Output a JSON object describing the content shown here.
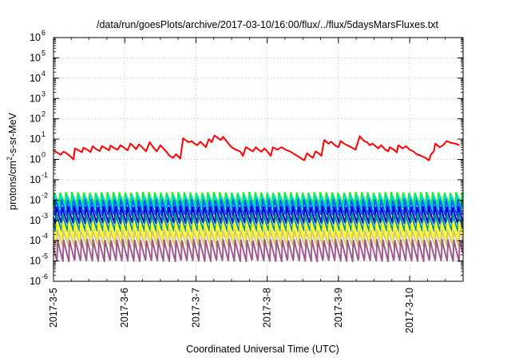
{
  "chart_data": {
    "type": "line",
    "title": "/data/run/goesPlots/archive/2017-03-10/16:00/flux/../flux/5daysMarsFluxes.txt",
    "xlabel": "Coordinated Universal Time (UTC)",
    "ylabel": {
      "base": "protons/cm",
      "sup": "2",
      "rest": "-s-sr-MeV"
    },
    "yscale": "log",
    "ylim_exp": [
      -6,
      6
    ],
    "y_tick_exponents": [
      -6,
      -5,
      -4,
      -3,
      -2,
      -1,
      0,
      1,
      2,
      3,
      4,
      5,
      6
    ],
    "xlim_days": [
      0,
      5.75
    ],
    "x_ticks": [
      {
        "day": 0,
        "label": "2017-3-5"
      },
      {
        "day": 1,
        "label": "2017-3-6"
      },
      {
        "day": 2,
        "label": "2017-3-7"
      },
      {
        "day": 3,
        "label": "2017-3-8"
      },
      {
        "day": 4,
        "label": "2017-3-9"
      },
      {
        "day": 5,
        "label": "2017-3-10"
      }
    ],
    "grid": true,
    "series": [
      {
        "color": "#ff0000",
        "points": [
          [
            0.0,
            2.8
          ],
          [
            0.05,
            2.2
          ],
          [
            0.1,
            1.7
          ],
          [
            0.14,
            2.4
          ],
          [
            0.18,
            2.0
          ],
          [
            0.22,
            1.6
          ],
          [
            0.28,
            1.0
          ],
          [
            0.3,
            3.5
          ],
          [
            0.35,
            2.8
          ],
          [
            0.4,
            2.3
          ],
          [
            0.42,
            3.8
          ],
          [
            0.48,
            2.9
          ],
          [
            0.52,
            2.3
          ],
          [
            0.55,
            4.5
          ],
          [
            0.6,
            3.2
          ],
          [
            0.65,
            2.6
          ],
          [
            0.68,
            4.5
          ],
          [
            0.74,
            3.4
          ],
          [
            0.78,
            2.8
          ],
          [
            0.8,
            4.8
          ],
          [
            0.86,
            3.5
          ],
          [
            0.9,
            3.0
          ],
          [
            0.94,
            5.0
          ],
          [
            0.99,
            3.8
          ],
          [
            1.04,
            2.8
          ],
          [
            1.08,
            6.0
          ],
          [
            1.12,
            4.5
          ],
          [
            1.16,
            3.2
          ],
          [
            1.2,
            5.5
          ],
          [
            1.25,
            3.8
          ],
          [
            1.3,
            2.5
          ],
          [
            1.35,
            7.0
          ],
          [
            1.4,
            4.0
          ],
          [
            1.45,
            2.5
          ],
          [
            1.5,
            5.0
          ],
          [
            1.58,
            2.5
          ],
          [
            1.63,
            1.5
          ],
          [
            1.68,
            1.2
          ],
          [
            1.72,
            1.8
          ],
          [
            1.78,
            1.1
          ],
          [
            1.82,
            11.0
          ],
          [
            1.86,
            8.5
          ],
          [
            1.9,
            7.0
          ],
          [
            1.94,
            8.0
          ],
          [
            1.98,
            6.0
          ],
          [
            2.02,
            5.0
          ],
          [
            2.06,
            7.5
          ],
          [
            2.1,
            5.5
          ],
          [
            2.14,
            4.0
          ],
          [
            2.18,
            10.0
          ],
          [
            2.22,
            7.0
          ],
          [
            2.26,
            15.0
          ],
          [
            2.3,
            12.0
          ],
          [
            2.35,
            9.0
          ],
          [
            2.38,
            13.0
          ],
          [
            2.44,
            7.0
          ],
          [
            2.5,
            4.0
          ],
          [
            2.56,
            3.0
          ],
          [
            2.62,
            2.5
          ],
          [
            2.66,
            1.5
          ],
          [
            2.7,
            4.0
          ],
          [
            2.76,
            3.0
          ],
          [
            2.8,
            2.5
          ],
          [
            2.84,
            4.0
          ],
          [
            2.88,
            3.0
          ],
          [
            2.92,
            2.4
          ],
          [
            2.96,
            3.5
          ],
          [
            3.0,
            2.5
          ],
          [
            3.05,
            1.5
          ],
          [
            3.08,
            4.0
          ],
          [
            3.14,
            3.0
          ],
          [
            3.2,
            4.0
          ],
          [
            3.26,
            3.0
          ],
          [
            3.32,
            2.5
          ],
          [
            3.36,
            2.0
          ],
          [
            3.42,
            1.5
          ],
          [
            3.48,
            1.1
          ],
          [
            3.52,
            0.9
          ],
          [
            3.56,
            2.0
          ],
          [
            3.6,
            1.5
          ],
          [
            3.64,
            1.2
          ],
          [
            3.68,
            2.5
          ],
          [
            3.72,
            2.0
          ],
          [
            3.76,
            1.5
          ],
          [
            3.8,
            9.0
          ],
          [
            3.86,
            6.0
          ],
          [
            3.9,
            7.5
          ],
          [
            3.95,
            5.0
          ],
          [
            4.0,
            4.0
          ],
          [
            4.03,
            8.0
          ],
          [
            4.08,
            6.0
          ],
          [
            4.12,
            5.0
          ],
          [
            4.18,
            4.0
          ],
          [
            4.24,
            3.0
          ],
          [
            4.3,
            14.0
          ],
          [
            4.36,
            8.0
          ],
          [
            4.4,
            7.0
          ],
          [
            4.44,
            5.0
          ],
          [
            4.48,
            6.0
          ],
          [
            4.52,
            4.5
          ],
          [
            4.56,
            3.5
          ],
          [
            4.6,
            5.0
          ],
          [
            4.66,
            3.0
          ],
          [
            4.7,
            2.5
          ],
          [
            4.72,
            4.0
          ],
          [
            4.78,
            3.0
          ],
          [
            4.82,
            2.2
          ],
          [
            4.84,
            5.0
          ],
          [
            4.9,
            3.5
          ],
          [
            4.95,
            4.5
          ],
          [
            5.0,
            3.0
          ],
          [
            5.05,
            2.5
          ],
          [
            5.1,
            1.8
          ],
          [
            5.16,
            1.5
          ],
          [
            5.22,
            1.2
          ],
          [
            5.27,
            0.9
          ],
          [
            5.3,
            1.8
          ],
          [
            5.34,
            2.5
          ],
          [
            5.36,
            6.0
          ],
          [
            5.42,
            4.0
          ],
          [
            5.47,
            5.0
          ],
          [
            5.52,
            8.0
          ],
          [
            5.58,
            6.5
          ],
          [
            5.64,
            6.0
          ],
          [
            5.7,
            5.0
          ]
        ]
      },
      {
        "color": "#00ff00",
        "peak": 0.024,
        "trough": 0.006,
        "period": 0.083,
        "phase": 0.0
      },
      {
        "color": "#00d8d8",
        "peak": 0.018,
        "trough": 0.004,
        "period": 0.083,
        "phase": 0.01
      },
      {
        "color": "#0060ff",
        "peak": 0.011,
        "trough": 0.0018,
        "period": 0.083,
        "phase": 0.02
      },
      {
        "color": "#0000d0",
        "peak": 0.005,
        "trough": 0.0007,
        "period": 0.083,
        "phase": 0.03
      },
      {
        "color": "#009090",
        "peak": 0.0022,
        "trough": 0.00028,
        "period": 0.083,
        "phase": 0.035
      },
      {
        "color": "#ffff00",
        "peak": 0.0008,
        "trough": 0.00012,
        "period": 0.083,
        "phase": 0.04
      },
      {
        "color": "#d8c870",
        "peak": 0.00035,
        "trough": 5.5e-05,
        "period": 0.083,
        "phase": 0.045
      },
      {
        "color": "#a05a8a",
        "peak": 0.00012,
        "trough": 9.5e-06,
        "period": 0.083,
        "phase": 0.05
      }
    ]
  }
}
